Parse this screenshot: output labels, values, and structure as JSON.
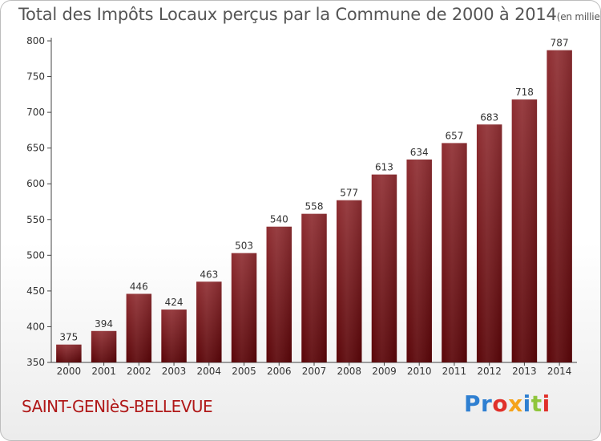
{
  "chart_data": {
    "type": "bar",
    "title": "Total des Impôts Locaux perçus par la Commune de 2000 à 2014",
    "title_unit": "(en milliers d'€)",
    "categories": [
      "2000",
      "2001",
      "2002",
      "2003",
      "2004",
      "2005",
      "2006",
      "2007",
      "2008",
      "2009",
      "2010",
      "2011",
      "2012",
      "2013",
      "2014"
    ],
    "values": [
      375,
      394,
      446,
      424,
      463,
      503,
      540,
      558,
      577,
      613,
      634,
      657,
      683,
      718,
      787
    ],
    "ylim": [
      350,
      800
    ],
    "yticks": [
      350,
      400,
      450,
      500,
      550,
      600,
      650,
      700,
      750,
      800
    ],
    "grid": false,
    "bar_color": "#7a1a1e"
  },
  "commune": "SAINT-GENIèS-BELLEVUE",
  "brand": {
    "p1": "Pr",
    "p2": "o",
    "p3": "x",
    "p4": "i",
    "p5": "t",
    "p6": "i"
  }
}
